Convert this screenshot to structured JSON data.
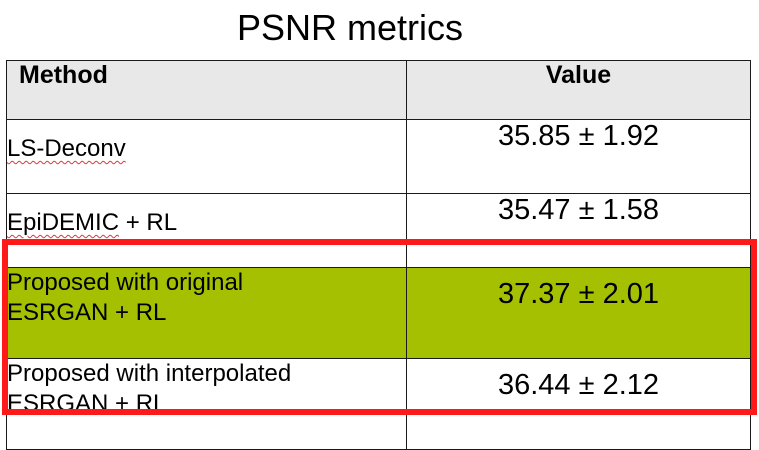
{
  "title": "PSNR metrics",
  "table": {
    "headers": {
      "method": "Method",
      "value": "Value"
    },
    "rows": [
      {
        "method_main": "LS-Deconv",
        "method_rest": "",
        "value": "35.85 ± 1.92"
      },
      {
        "method_main": "EpiDEMIC",
        "method_rest": " + RL",
        "value": "35.47 ± 1.58"
      },
      {
        "method_line1": "Proposed with original",
        "method_line2": "ESRGAN + RL",
        "value": "37.37 ± 2.01"
      },
      {
        "method_line1": "Proposed with interpolated",
        "method_line2": "ESRGAN + RL",
        "value": "36.44 ± 2.12"
      }
    ]
  },
  "colors": {
    "highlight_row": "#a4c000",
    "highlight_border": "#ff1a1a",
    "header_background": "#e8e8e8"
  }
}
